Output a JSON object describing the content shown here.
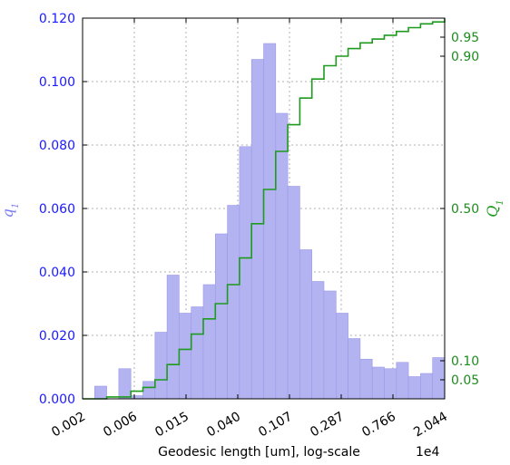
{
  "chart_data": {
    "type": "bar",
    "title": "",
    "xlabel": "Geodesic length [um], log-scale",
    "x_offset_text": "1e4",
    "x_scale": "log",
    "x_tick_labels": [
      "0.002",
      "0.006",
      "0.015",
      "0.040",
      "0.107",
      "0.287",
      "0.766",
      "2.044"
    ],
    "y_left_label": "q",
    "y_left_label_sub": "1",
    "y_left_ticks": [
      "0.000",
      "0.020",
      "0.040",
      "0.060",
      "0.080",
      "0.100",
      "0.120"
    ],
    "ylim_left": [
      0,
      0.12
    ],
    "y_right_label": "Q",
    "y_right_label_sub": "1",
    "y_right_ticks": [
      "0.05",
      "0.10",
      "0.50",
      "0.90",
      "0.95"
    ],
    "ylim_right": [
      0,
      1
    ],
    "grid": true,
    "colors": {
      "bars": "#b3b3f2",
      "bar_edge": "#9a9ae6",
      "cdf": "#1e9a1e",
      "left_axis": "#1a1aff",
      "right_axis": "#1e8c1e"
    },
    "series": [
      {
        "kind": "histogram",
        "values": [
          0.0,
          0.004,
          0.0,
          0.0095,
          0.001,
          0.0055,
          0.021,
          0.039,
          0.027,
          0.029,
          0.036,
          0.052,
          0.061,
          0.0795,
          0.107,
          0.112,
          0.09,
          0.067,
          0.047,
          0.037,
          0.034,
          0.027,
          0.019,
          0.0125,
          0.01,
          0.0095,
          0.0115,
          0.007,
          0.008,
          0.013
        ]
      },
      {
        "kind": "cdf",
        "x_bin": [
          0,
          1,
          2,
          3,
          4,
          5,
          6,
          7,
          8,
          9,
          10,
          11,
          12,
          13,
          14,
          15,
          16,
          17,
          18,
          19,
          20,
          21,
          22,
          23,
          24,
          25,
          26,
          27,
          28,
          29,
          30
        ],
        "values": [
          0.0,
          0.0,
          0.005,
          0.005,
          0.02,
          0.03,
          0.05,
          0.09,
          0.13,
          0.17,
          0.21,
          0.25,
          0.3,
          0.37,
          0.46,
          0.55,
          0.65,
          0.72,
          0.79,
          0.84,
          0.875,
          0.9,
          0.92,
          0.935,
          0.945,
          0.955,
          0.965,
          0.975,
          0.985,
          0.99,
          1.0
        ]
      }
    ]
  }
}
